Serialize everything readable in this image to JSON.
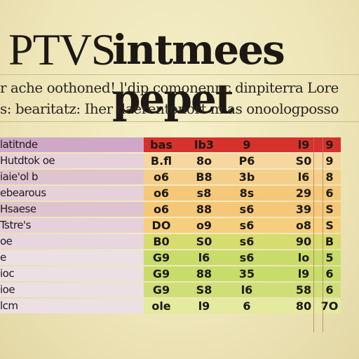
{
  "title": {
    "left": "PTVS",
    "right": "intmees pepet"
  },
  "subtitle": {
    "line1": "r ache oothoned! l'dip comonennc dinpiterra Lore",
    "line2": "s: bearitatz:  Iher daerentonort  m  as onoologposso"
  },
  "colors": {
    "header_label_bg": "#cfa8c8",
    "header_cell_bg": "#d6322c",
    "label_bg_light": "#e6d1da",
    "cell_bg_orange": "#f4c878",
    "cell_bg_green": "#c8dc6a",
    "cell_bg_lightgreen": "#dfe79a"
  },
  "table": {
    "rows": [
      {
        "label": "latitnde",
        "cells": [
          "bas",
          "lb3",
          "9",
          "l9",
          "9"
        ],
        "label_bg": "#cfa8c8",
        "cell_bg": "#d6322c"
      },
      {
        "label": "Hutdtok oe",
        "cells": [
          "B.fl",
          "8o",
          "P6",
          "S0",
          "9"
        ],
        "label_bg": "#e6d1da",
        "cell_bg": "#f6d7a0"
      },
      {
        "label": "iaie'ol b",
        "cells": [
          "o6",
          "B8",
          "3b",
          "l6",
          "8"
        ],
        "label_bg": "#dfc4cf",
        "cell_bg": "#f4cf8a"
      },
      {
        "label": "ebearous",
        "cells": [
          "o6",
          "s8",
          "8s",
          "29",
          "6"
        ],
        "label_bg": "#e6d1da",
        "cell_bg": "#f4c878"
      },
      {
        "label": "Hsaese",
        "cells": [
          "o6",
          "88",
          "s6",
          "39",
          "S"
        ],
        "label_bg": "#dfc4cf",
        "cell_bg": "#f4c878"
      },
      {
        "label": "Tstre's",
        "cells": [
          "DO",
          "o9",
          "s6",
          "o8",
          "S"
        ],
        "label_bg": "#e6d1da",
        "cell_bg": "#f6cf7e"
      },
      {
        "label": "oe",
        "cells": [
          "B0",
          "S0",
          "s6",
          "90",
          "B"
        ],
        "label_bg": "#e8d6de",
        "cell_bg": "#d6dc6e"
      },
      {
        "label": "e",
        "cells": [
          "G9",
          "l6",
          "s6",
          "lo",
          "5"
        ],
        "label_bg": "#ece0e4",
        "cell_bg": "#c8dc6a"
      },
      {
        "label": "ioc",
        "cells": [
          "G9",
          "88",
          "35",
          "l9",
          "6"
        ],
        "label_bg": "#ece0e4",
        "cell_bg": "#c8dc6a"
      },
      {
        "label": "ioe",
        "cells": [
          "G9",
          "S8",
          "l6",
          "58",
          "6"
        ],
        "label_bg": "#ece0e4",
        "cell_bg": "#cfdf78"
      },
      {
        "label": "lcm",
        "cells": [
          "ole",
          "l9",
          "6",
          "80",
          "7O"
        ],
        "label_bg": "#ece0e4",
        "cell_bg": "#e4ea9e"
      }
    ]
  }
}
